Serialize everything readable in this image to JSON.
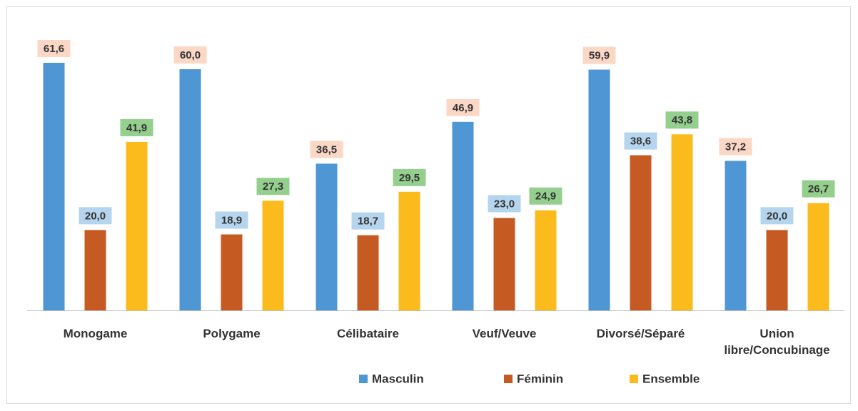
{
  "chart_data": {
    "type": "bar",
    "categories": [
      "Monogame",
      "Polygame",
      "Célibataire",
      "Veuf/Veuve",
      "Divorsé/Séparé",
      "Union libre/Concubinage"
    ],
    "series": [
      {
        "name": "Masculin",
        "color": "#4e96d4",
        "label_color": "#fbd7c6",
        "values": [
          61.6,
          60.0,
          36.5,
          46.9,
          59.9,
          37.2
        ],
        "value_labels": [
          "61,6",
          "60,0",
          "36,5",
          "46,9",
          "59,9",
          "37,2"
        ]
      },
      {
        "name": "Féminin",
        "color": "#c55a22",
        "label_color": "#b5d4ee",
        "values": [
          20.0,
          18.9,
          18.7,
          23.0,
          38.6,
          20.0
        ],
        "value_labels": [
          "20,0",
          "18,9",
          "18,7",
          "23,0",
          "38,6",
          "20,0"
        ]
      },
      {
        "name": "Ensemble",
        "color": "#fcbb1c",
        "label_color": "#94cf8e",
        "values": [
          41.9,
          27.3,
          29.5,
          24.9,
          43.8,
          26.7
        ],
        "value_labels": [
          "41,9",
          "27,3",
          "29,5",
          "24,9",
          "43,8",
          "26,7"
        ]
      }
    ],
    "legend": "bottom"
  }
}
